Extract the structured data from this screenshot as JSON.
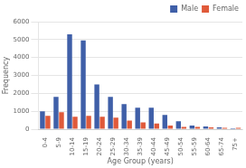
{
  "chart_data": {
    "type": "bar",
    "categories": [
      "0-4",
      "5-9",
      "10-14",
      "15-19",
      "20-24",
      "25-29",
      "30-34",
      "35-39",
      "40-44",
      "45-49",
      "50-54",
      "55-59",
      "60-64",
      "65-74",
      "75+"
    ],
    "series": [
      {
        "name": "Male",
        "color": "#3f5fa8",
        "values": [
          1000,
          1800,
          5300,
          4950,
          2500,
          1800,
          1400,
          1200,
          1200,
          800,
          450,
          200,
          150,
          100,
          50
        ]
      },
      {
        "name": "Female",
        "color": "#e05a3a",
        "values": [
          750,
          950,
          700,
          750,
          700,
          650,
          480,
          380,
          320,
          200,
          130,
          130,
          100,
          80,
          80
        ]
      }
    ],
    "xlabel": "Age Group (years)",
    "ylabel": "Frequency",
    "ylim": [
      0,
      6000
    ],
    "yticks": [
      0,
      1000,
      2000,
      3000,
      4000,
      5000,
      6000
    ],
    "grid": true,
    "legend": "upper right"
  }
}
